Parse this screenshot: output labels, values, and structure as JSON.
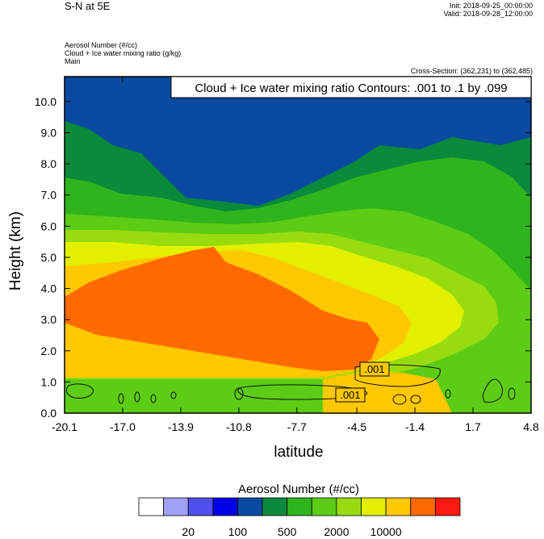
{
  "header": {
    "title": "S-N at 5E",
    "init": "Init: 2018-09-25_00:00:00",
    "valid": "Valid: 2018-09-28_12:00:00",
    "field1": "Aerosol Number   (#/cc)",
    "field2": "Cloud + Ice water mixing ratio   (g/kg)",
    "field3": "Main",
    "cross_section": "Cross-Section: (362,231) to (362,485)"
  },
  "chart_data": {
    "type": "heatmap",
    "title": "S-N at 5E",
    "contour_label": "Cloud + Ice water mixing ratio Contours: .001 to .1 by .099",
    "xlabel": "latitude",
    "ylabel": "Height (km)",
    "xlim": [
      -20.1,
      4.8
    ],
    "ylim": [
      0.0,
      10.8
    ],
    "x_ticks": [
      "-20.1",
      "-17.0",
      "-13.9",
      "-10.8",
      "-7.7",
      "-4.5",
      "-1.4",
      "1.7",
      "4.8"
    ],
    "y_ticks": [
      "0.0",
      "1.0",
      "2.0",
      "3.0",
      "4.0",
      "5.0",
      "6.0",
      "7.0",
      "8.0",
      "9.0",
      "10.0"
    ],
    "contour_values": [
      ".001",
      ".001"
    ],
    "colorbar": {
      "title": "Aerosol Number  (#/cc)",
      "colors": [
        "#ffffff",
        "#a0a0f5",
        "#5050f0",
        "#0000e6",
        "#0a4aa0",
        "#0a8a3a",
        "#30b41e",
        "#5ccc14",
        "#98dc10",
        "#e2f000",
        "#ffc800",
        "#ff6a00",
        "#ff1a10"
      ],
      "tick_labels": [
        "20",
        "100",
        "500",
        "2000",
        "10000"
      ]
    },
    "colors": {
      "band_0_navy": "#0a4aa0",
      "band_1_darkgreen": "#0a8a3a",
      "band_2_green": "#30b41e",
      "band_3_lightgreen": "#5ccc14",
      "band_4_yellowgreen": "#98dc10",
      "band_5_yellow": "#e2f000",
      "band_6_orange": "#ffc800",
      "band_7_darkorange": "#ff6a00"
    }
  }
}
